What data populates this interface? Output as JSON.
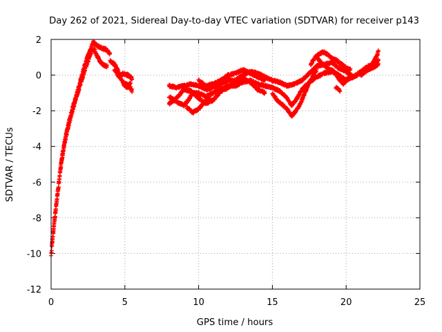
{
  "chart_data": {
    "type": "scatter",
    "title": "Day 262 of 2021, Sidereal Day-to-day VTEC variation (SDTVAR) for receiver p143",
    "xlabel": "GPS time / hours",
    "ylabel": "SDTVAR / TECUs",
    "xlim": [
      0,
      25
    ],
    "ylim": [
      -12,
      2
    ],
    "xticks": [
      0,
      5,
      10,
      15,
      20,
      25
    ],
    "yticks": [
      -12,
      -10,
      -8,
      -6,
      -4,
      -2,
      0,
      2
    ],
    "grid": true,
    "marker": "plus",
    "marker_color": "#ff0000",
    "legend": "none",
    "series": [
      {
        "name": "SDTVAR",
        "segments": [
          {
            "step": 0.012,
            "jitter": 0.18,
            "points": [
              [
                0.0,
                -10.1
              ],
              [
                0.1,
                -9.2
              ],
              [
                0.3,
                -7.6
              ],
              [
                0.5,
                -6.2
              ],
              [
                0.7,
                -4.8
              ],
              [
                0.9,
                -3.8
              ],
              [
                1.1,
                -3.0
              ],
              [
                1.4,
                -2.0
              ],
              [
                1.7,
                -1.2
              ],
              [
                2.0,
                -0.3
              ],
              [
                2.3,
                0.6
              ],
              [
                2.6,
                1.3
              ],
              [
                2.8,
                1.7
              ],
              [
                2.9,
                1.9
              ]
            ]
          },
          {
            "step": 0.012,
            "jitter": 0.18,
            "points": [
              [
                0.05,
                -9.5
              ],
              [
                0.25,
                -8.0
              ],
              [
                0.45,
                -6.6
              ],
              [
                0.65,
                -5.2
              ],
              [
                0.85,
                -4.1
              ],
              [
                1.05,
                -3.3
              ],
              [
                1.35,
                -2.3
              ],
              [
                1.65,
                -1.4
              ],
              [
                1.95,
                -0.6
              ],
              [
                2.25,
                0.2
              ],
              [
                2.55,
                0.9
              ],
              [
                2.8,
                1.5
              ]
            ]
          },
          {
            "step": 0.012,
            "jitter": 0.15,
            "points": [
              [
                2.9,
                1.8
              ],
              [
                3.2,
                1.6
              ],
              [
                3.5,
                1.5
              ],
              [
                3.8,
                1.4
              ],
              [
                4.0,
                1.2
              ]
            ]
          },
          {
            "step": 0.012,
            "jitter": 0.15,
            "points": [
              [
                2.9,
                1.5
              ],
              [
                3.1,
                1.1
              ],
              [
                3.3,
                0.8
              ],
              [
                3.5,
                0.6
              ],
              [
                3.8,
                0.5
              ]
            ]
          },
          {
            "step": 0.012,
            "jitter": 0.15,
            "points": [
              [
                4.0,
                0.8
              ],
              [
                4.3,
                0.6
              ],
              [
                4.5,
                0.3
              ],
              [
                4.8,
                -0.3
              ],
              [
                5.0,
                -0.6
              ],
              [
                5.2,
                -0.7
              ],
              [
                5.4,
                -0.4
              ]
            ]
          },
          {
            "step": 0.012,
            "jitter": 0.15,
            "points": [
              [
                4.3,
                0.3
              ],
              [
                4.6,
                -0.1
              ],
              [
                4.9,
                0.1
              ],
              [
                5.2,
                0.0
              ],
              [
                5.5,
                -0.2
              ]
            ]
          },
          {
            "step": 0.012,
            "jitter": 0.15,
            "points": [
              [
                5.0,
                -0.5
              ],
              [
                5.3,
                -0.6
              ],
              [
                5.5,
                -0.9
              ]
            ]
          },
          {
            "step": 0.012,
            "jitter": 0.12,
            "points": [
              [
                8.0,
                -0.6
              ],
              [
                8.5,
                -0.7
              ],
              [
                9.0,
                -0.6
              ],
              [
                9.5,
                -0.5
              ],
              [
                10.0,
                -0.6
              ],
              [
                10.5,
                -0.8
              ],
              [
                11.0,
                -0.7
              ],
              [
                11.5,
                -0.5
              ],
              [
                12.0,
                -0.3
              ],
              [
                12.5,
                -0.3
              ],
              [
                13.0,
                0.0
              ],
              [
                13.5,
                0.2
              ],
              [
                14.0,
                0.1
              ],
              [
                14.5,
                -0.1
              ],
              [
                15.0,
                -0.3
              ],
              [
                15.5,
                -0.4
              ],
              [
                16.0,
                -0.6
              ],
              [
                16.5,
                -0.5
              ],
              [
                17.0,
                -0.3
              ],
              [
                17.5,
                0.1
              ],
              [
                18.0,
                0.5
              ],
              [
                18.5,
                0.6
              ],
              [
                19.0,
                0.7
              ],
              [
                19.5,
                0.4
              ],
              [
                20.0,
                0.2
              ],
              [
                20.5,
                -0.1
              ],
              [
                21.0,
                0.2
              ],
              [
                21.5,
                0.5
              ],
              [
                22.0,
                0.6
              ],
              [
                22.2,
                0.9
              ]
            ]
          },
          {
            "step": 0.012,
            "jitter": 0.12,
            "points": [
              [
                8.0,
                -1.2
              ],
              [
                8.5,
                -1.5
              ],
              [
                9.0,
                -1.7
              ],
              [
                9.3,
                -1.4
              ],
              [
                9.6,
                -1.0
              ],
              [
                10.0,
                -1.0
              ],
              [
                10.5,
                -1.2
              ],
              [
                11.0,
                -1.0
              ],
              [
                11.5,
                -0.8
              ],
              [
                12.0,
                -0.6
              ],
              [
                12.5,
                -0.6
              ],
              [
                13.0,
                -0.4
              ],
              [
                13.5,
                -0.3
              ],
              [
                14.0,
                -0.5
              ],
              [
                14.5,
                -0.6
              ],
              [
                15.0,
                -0.7
              ],
              [
                15.5,
                -0.9
              ],
              [
                16.0,
                -1.3
              ],
              [
                16.3,
                -1.7
              ],
              [
                16.6,
                -1.4
              ],
              [
                17.0,
                -0.8
              ],
              [
                17.5,
                -0.4
              ],
              [
                18.0,
                -0.1
              ],
              [
                18.5,
                0.1
              ],
              [
                19.0,
                0.2
              ],
              [
                19.5,
                0.0
              ],
              [
                20.0,
                -0.3
              ],
              [
                20.5,
                -0.1
              ],
              [
                21.0,
                0.1
              ],
              [
                21.5,
                0.3
              ],
              [
                22.0,
                0.5
              ],
              [
                22.2,
                0.6
              ]
            ]
          },
          {
            "step": 0.012,
            "jitter": 0.12,
            "points": [
              [
                8.0,
                -1.6
              ],
              [
                8.5,
                -1.3
              ],
              [
                9.0,
                -0.8
              ],
              [
                9.5,
                -0.9
              ],
              [
                10.0,
                -1.3
              ],
              [
                10.5,
                -1.6
              ],
              [
                11.0,
                -1.4
              ],
              [
                11.5,
                -0.9
              ],
              [
                12.0,
                -0.7
              ],
              [
                12.5,
                -0.4
              ],
              [
                13.0,
                -0.2
              ],
              [
                13.5,
                -0.4
              ],
              [
                14.0,
                -0.8
              ],
              [
                14.5,
                -1.0
              ]
            ]
          },
          {
            "step": 0.012,
            "jitter": 0.12,
            "points": [
              [
                9.2,
                -1.8
              ],
              [
                9.6,
                -2.1
              ],
              [
                10.0,
                -1.9
              ],
              [
                10.4,
                -1.5
              ],
              [
                10.8,
                -1.3
              ]
            ]
          },
          {
            "step": 0.012,
            "jitter": 0.12,
            "points": [
              [
                10.0,
                -0.3
              ],
              [
                10.5,
                -0.6
              ],
              [
                11.0,
                -0.5
              ],
              [
                11.5,
                -0.3
              ],
              [
                12.0,
                0.0
              ],
              [
                12.5,
                0.1
              ],
              [
                13.0,
                0.3
              ],
              [
                13.5,
                0.1
              ],
              [
                14.0,
                -0.1
              ],
              [
                14.5,
                -0.3
              ]
            ]
          },
          {
            "step": 0.012,
            "jitter": 0.12,
            "points": [
              [
                15.0,
                -1.0
              ],
              [
                15.3,
                -1.4
              ],
              [
                15.6,
                -1.6
              ],
              [
                16.0,
                -1.9
              ],
              [
                16.3,
                -2.3
              ],
              [
                16.6,
                -2.0
              ],
              [
                16.9,
                -1.6
              ],
              [
                17.2,
                -1.0
              ],
              [
                17.5,
                -0.4
              ],
              [
                17.8,
                0.0
              ],
              [
                18.0,
                0.3
              ]
            ]
          },
          {
            "step": 0.012,
            "jitter": 0.12,
            "points": [
              [
                17.6,
                0.6
              ],
              [
                17.9,
                1.0
              ],
              [
                18.2,
                1.2
              ],
              [
                18.5,
                1.3
              ],
              [
                18.8,
                1.1
              ],
              [
                19.1,
                0.9
              ],
              [
                19.4,
                0.8
              ],
              [
                19.7,
                0.6
              ],
              [
                20.0,
                0.4
              ],
              [
                20.3,
                0.3
              ]
            ]
          },
          {
            "step": 0.012,
            "jitter": 0.12,
            "points": [
              [
                18.0,
                1.0
              ],
              [
                18.3,
                0.7
              ],
              [
                18.6,
                0.5
              ],
              [
                18.9,
                0.3
              ],
              [
                19.2,
                0.2
              ],
              [
                19.5,
                -0.2
              ],
              [
                19.8,
                -0.5
              ],
              [
                20.1,
                -0.2
              ],
              [
                20.4,
                0.0
              ]
            ]
          },
          {
            "step": 0.012,
            "jitter": 0.1,
            "points": [
              [
                19.3,
                -0.7
              ],
              [
                19.5,
                -0.8
              ],
              [
                19.6,
                -0.9
              ]
            ]
          },
          {
            "step": 0.012,
            "jitter": 0.12,
            "points": [
              [
                21.0,
                0.0
              ],
              [
                21.3,
                0.2
              ],
              [
                21.6,
                0.4
              ],
              [
                21.9,
                0.8
              ],
              [
                22.1,
                1.1
              ],
              [
                22.2,
                1.4
              ]
            ]
          }
        ]
      }
    ]
  }
}
